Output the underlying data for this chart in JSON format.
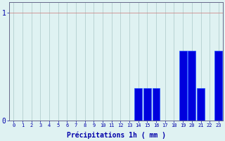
{
  "categories": [
    0,
    1,
    2,
    3,
    4,
    5,
    6,
    7,
    8,
    9,
    10,
    11,
    12,
    13,
    14,
    15,
    16,
    17,
    18,
    19,
    20,
    21,
    22,
    23
  ],
  "values": [
    0,
    0,
    0,
    0,
    0,
    0,
    0,
    0,
    0,
    0,
    0,
    0,
    0,
    0,
    0.3,
    0.3,
    0.3,
    0,
    0,
    0.65,
    0.65,
    0.3,
    0,
    0.65
  ],
  "bar_color": "#0000dd",
  "bar_edge_color": "#2255ff",
  "background_color": "#dff2f2",
  "grid_color": "#aac8c8",
  "grid_color_h": "#cc7777",
  "axis_color": "#666688",
  "xlabel": "Précipitations 1h ( mm )",
  "xlabel_color": "#0000aa",
  "tick_color": "#0000aa",
  "yticks": [
    0,
    1
  ],
  "ylim": [
    0,
    1.1
  ],
  "xlim": [
    -0.5,
    23.5
  ]
}
